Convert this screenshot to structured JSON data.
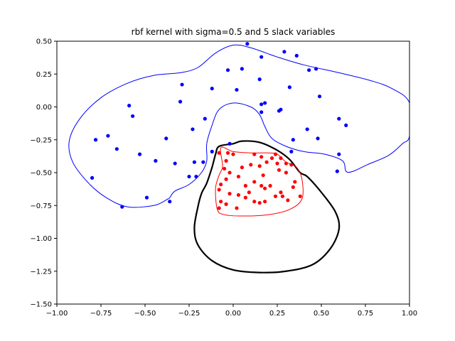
{
  "chart_data": {
    "type": "scatter",
    "title": "rbf kernel with sigma=0.5 and 5 slack variables",
    "xlabel": "",
    "ylabel": "",
    "xlim": [
      -1.0,
      1.0
    ],
    "ylim": [
      -1.5,
      0.5
    ],
    "x_ticks": [
      "−1.00",
      "−0.75",
      "−0.50",
      "−0.25",
      "0.00",
      "0.25",
      "0.50",
      "0.75",
      "1.00"
    ],
    "x_tick_values": [
      -1.0,
      -0.75,
      -0.5,
      -0.25,
      0.0,
      0.25,
      0.5,
      0.75,
      1.0
    ],
    "y_ticks": [
      "−1.50",
      "−1.25",
      "−1.00",
      "−0.75",
      "−0.50",
      "−0.25",
      "0.00",
      "0.25",
      "0.50"
    ],
    "y_tick_values": [
      -1.5,
      -1.25,
      -1.0,
      -0.75,
      -0.5,
      -0.25,
      0.0,
      0.25,
      0.5
    ],
    "grid": false,
    "legend": "none",
    "series": [
      {
        "color": "#0000ff",
        "points": [
          [
            0.08,
            0.48
          ],
          [
            0.29,
            0.42
          ],
          [
            0.16,
            0.38
          ],
          [
            0.36,
            0.39
          ],
          [
            -0.03,
            0.28
          ],
          [
            0.05,
            0.29
          ],
          [
            0.43,
            0.28
          ],
          [
            0.47,
            0.29
          ],
          [
            0.15,
            0.21
          ],
          [
            -0.29,
            0.17
          ],
          [
            -0.12,
            0.14
          ],
          [
            0.02,
            0.13
          ],
          [
            0.32,
            0.15
          ],
          [
            0.49,
            0.08
          ],
          [
            -0.3,
            0.04
          ],
          [
            -0.59,
            0.01
          ],
          [
            0.16,
            0.02
          ],
          [
            0.18,
            0.03
          ],
          [
            0.16,
            -0.04
          ],
          [
            0.26,
            -0.03
          ],
          [
            0.27,
            -0.02
          ],
          [
            -0.57,
            -0.07
          ],
          [
            -0.16,
            -0.09
          ],
          [
            0.6,
            -0.09
          ],
          [
            0.64,
            -0.14
          ],
          [
            -0.23,
            -0.17
          ],
          [
            0.42,
            -0.17
          ],
          [
            -0.71,
            -0.22
          ],
          [
            -0.78,
            -0.25
          ],
          [
            -0.38,
            -0.24
          ],
          [
            0.34,
            -0.25
          ],
          [
            0.48,
            -0.24
          ],
          [
            -0.12,
            -0.34
          ],
          [
            -0.02,
            -0.28
          ],
          [
            0.33,
            -0.34
          ],
          [
            0.6,
            -0.36
          ],
          [
            -0.66,
            -0.32
          ],
          [
            -0.53,
            -0.36
          ],
          [
            -0.44,
            -0.41
          ],
          [
            -0.33,
            -0.43
          ],
          [
            -0.22,
            -0.42
          ],
          [
            -0.17,
            -0.42
          ],
          [
            -0.25,
            -0.53
          ],
          [
            -0.21,
            -0.53
          ],
          [
            0.59,
            -0.49
          ],
          [
            -0.8,
            -0.54
          ],
          [
            -0.49,
            -0.69
          ],
          [
            -0.36,
            -0.72
          ],
          [
            -0.63,
            -0.76
          ]
        ]
      },
      {
        "color": "#ff0000",
        "points": [
          [
            -0.08,
            -0.35
          ],
          [
            -0.03,
            -0.35
          ],
          [
            0.0,
            -0.36
          ],
          [
            0.12,
            -0.36
          ],
          [
            0.24,
            -0.36
          ],
          [
            0.27,
            -0.39
          ],
          [
            -0.04,
            -0.41
          ],
          [
            0.16,
            -0.38
          ],
          [
            0.22,
            -0.39
          ],
          [
            0.3,
            -0.43
          ],
          [
            0.33,
            -0.44
          ],
          [
            0.19,
            -0.42
          ],
          [
            0.1,
            -0.44
          ],
          [
            -0.05,
            -0.47
          ],
          [
            0.05,
            -0.46
          ],
          [
            0.15,
            -0.45
          ],
          [
            0.25,
            -0.43
          ],
          [
            -0.02,
            -0.5
          ],
          [
            0.03,
            -0.53
          ],
          [
            0.17,
            -0.52
          ],
          [
            0.26,
            -0.48
          ],
          [
            0.3,
            -0.5
          ],
          [
            -0.04,
            -0.55
          ],
          [
            0.12,
            -0.57
          ],
          [
            0.35,
            -0.57
          ],
          [
            0.16,
            -0.6
          ],
          [
            0.21,
            -0.6
          ],
          [
            -0.07,
            -0.59
          ],
          [
            0.07,
            -0.6
          ],
          [
            0.18,
            -0.62
          ],
          [
            0.34,
            -0.61
          ],
          [
            0.27,
            -0.65
          ],
          [
            0.38,
            -0.68
          ],
          [
            -0.08,
            -0.63
          ],
          [
            0.09,
            -0.65
          ],
          [
            0.24,
            -0.68
          ],
          [
            -0.02,
            -0.66
          ],
          [
            0.07,
            -0.69
          ],
          [
            0.03,
            -0.67
          ],
          [
            0.28,
            -0.68
          ],
          [
            -0.07,
            -0.72
          ],
          [
            0.12,
            -0.72
          ],
          [
            0.18,
            -0.72
          ],
          [
            0.31,
            -0.71
          ],
          [
            -0.04,
            -0.74
          ],
          [
            -0.08,
            -0.77
          ],
          [
            0.02,
            -0.77
          ],
          [
            0.15,
            -0.73
          ]
        ]
      }
    ],
    "boundaries": [
      {
        "color": "#0000ff",
        "width": 1,
        "closed": true,
        "path": [
          [
            1.0,
            0.03
          ],
          [
            0.9,
            0.14
          ],
          [
            0.78,
            0.2
          ],
          [
            0.6,
            0.26
          ],
          [
            0.4,
            0.32
          ],
          [
            0.25,
            0.38
          ],
          [
            0.1,
            0.45
          ],
          [
            0.0,
            0.47
          ],
          [
            -0.1,
            0.41
          ],
          [
            -0.2,
            0.3
          ],
          [
            -0.3,
            0.26
          ],
          [
            -0.45,
            0.24
          ],
          [
            -0.6,
            0.18
          ],
          [
            -0.75,
            0.07
          ],
          [
            -0.87,
            -0.09
          ],
          [
            -0.93,
            -0.26
          ],
          [
            -0.91,
            -0.42
          ],
          [
            -0.82,
            -0.58
          ],
          [
            -0.72,
            -0.69
          ],
          [
            -0.6,
            -0.76
          ],
          [
            -0.45,
            -0.75
          ],
          [
            -0.37,
            -0.7
          ],
          [
            -0.36,
            -0.69
          ],
          [
            -0.33,
            -0.64
          ],
          [
            -0.25,
            -0.59
          ],
          [
            -0.18,
            -0.5
          ],
          [
            -0.15,
            -0.41
          ],
          [
            -0.15,
            -0.28
          ],
          [
            -0.12,
            -0.14
          ],
          [
            -0.08,
            -0.02
          ],
          [
            0.0,
            0.03
          ],
          [
            0.1,
            0.0
          ],
          [
            0.15,
            -0.06
          ],
          [
            0.18,
            -0.15
          ],
          [
            0.22,
            -0.24
          ],
          [
            0.3,
            -0.3
          ],
          [
            0.4,
            -0.34
          ],
          [
            0.52,
            -0.36
          ],
          [
            0.62,
            -0.41
          ],
          [
            0.64,
            -0.49
          ],
          [
            0.68,
            -0.49
          ],
          [
            0.76,
            -0.44
          ],
          [
            0.88,
            -0.37
          ],
          [
            0.96,
            -0.28
          ],
          [
            1.0,
            -0.22
          ]
        ]
      },
      {
        "color": "#000000",
        "width": 2.2,
        "closed": true,
        "path": [
          [
            -0.08,
            -0.3
          ],
          [
            0.0,
            -0.28
          ],
          [
            0.05,
            -0.26
          ],
          [
            0.15,
            -0.27
          ],
          [
            0.25,
            -0.33
          ],
          [
            0.32,
            -0.4
          ],
          [
            0.38,
            -0.5
          ],
          [
            0.42,
            -0.53
          ],
          [
            0.5,
            -0.65
          ],
          [
            0.58,
            -0.8
          ],
          [
            0.6,
            -0.93
          ],
          [
            0.55,
            -1.08
          ],
          [
            0.45,
            -1.2
          ],
          [
            0.3,
            -1.25
          ],
          [
            0.15,
            -1.26
          ],
          [
            0.0,
            -1.24
          ],
          [
            -0.12,
            -1.17
          ],
          [
            -0.2,
            -1.05
          ],
          [
            -0.22,
            -0.92
          ],
          [
            -0.2,
            -0.76
          ],
          [
            -0.18,
            -0.66
          ],
          [
            -0.15,
            -0.58
          ],
          [
            -0.12,
            -0.46
          ],
          [
            -0.1,
            -0.36
          ]
        ]
      },
      {
        "color": "#ff0000",
        "width": 1,
        "closed": true,
        "path": [
          [
            -0.07,
            -0.31
          ],
          [
            0.0,
            -0.34
          ],
          [
            0.1,
            -0.35
          ],
          [
            0.2,
            -0.35
          ],
          [
            0.25,
            -0.36
          ],
          [
            0.3,
            -0.42
          ],
          [
            0.36,
            -0.46
          ],
          [
            0.39,
            -0.55
          ],
          [
            0.39,
            -0.7
          ],
          [
            0.32,
            -0.78
          ],
          [
            0.2,
            -0.82
          ],
          [
            0.05,
            -0.83
          ],
          [
            -0.05,
            -0.82
          ],
          [
            -0.09,
            -0.78
          ],
          [
            -0.1,
            -0.62
          ],
          [
            -0.08,
            -0.52
          ],
          [
            -0.06,
            -0.45
          ]
        ]
      }
    ]
  }
}
